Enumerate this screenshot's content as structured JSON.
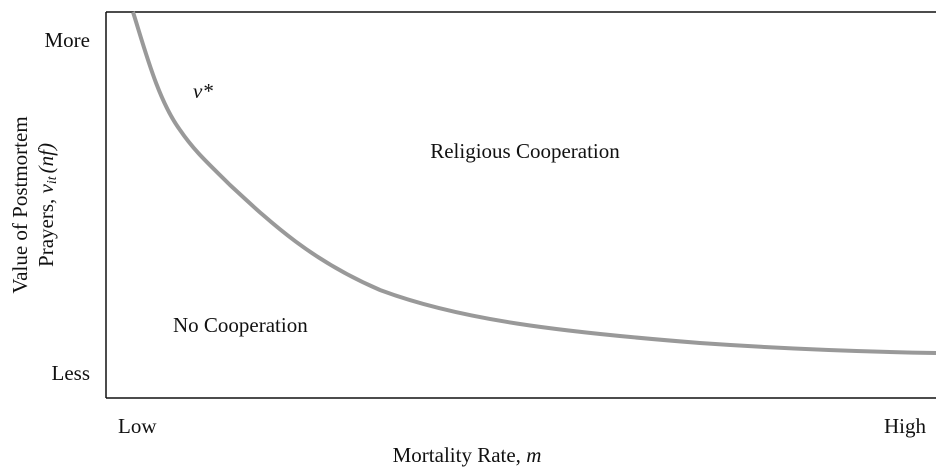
{
  "y_axis": {
    "top_label": "More",
    "bottom_label": "Less",
    "title": {
      "line1": "Value of Postmortem",
      "line2_text": "Prayers, ",
      "symbol": "v",
      "subscript": "it",
      "suffix": "(nf)"
    }
  },
  "x_axis": {
    "left_label": "Low",
    "right_label": "High",
    "title_text": "Mortality Rate, ",
    "title_symbol": "m"
  },
  "curve_label": "v*",
  "regions": {
    "upper": "Religious Cooperation",
    "lower": "No Cooperation"
  }
}
